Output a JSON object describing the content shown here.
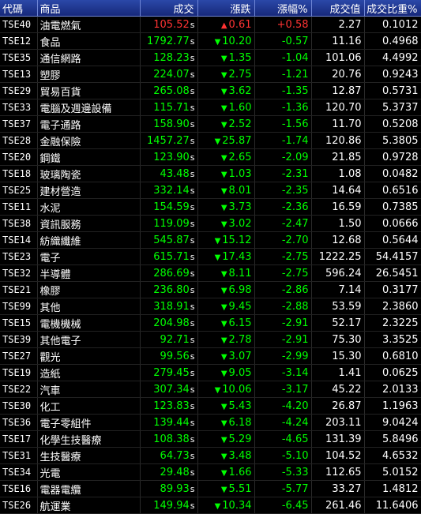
{
  "headers": {
    "code": "代碼",
    "name": "商品",
    "close": "成交",
    "change": "漲跌",
    "pct": "漲幅%",
    "value": "成交值",
    "ratio": "成交比重%"
  },
  "colors": {
    "up": "#ff3333",
    "down": "#00ff00",
    "header_bg": "#1e3a9a",
    "background": "#000000"
  },
  "icons": {
    "up": "triangle-up-icon",
    "down": "triangle-down-icon"
  },
  "rows": [
    {
      "code": "TSE40",
      "name": "油電燃氣",
      "close": "105.52",
      "flag": "s",
      "dir": "up",
      "arrow": "▲",
      "change": "0.61",
      "pct": "+0.58",
      "value": "2.27",
      "ratio": "0.1012"
    },
    {
      "code": "TSE12",
      "name": "食品",
      "close": "1792.77",
      "flag": "s",
      "dir": "down",
      "arrow": "▼",
      "change": "10.20",
      "pct": "-0.57",
      "value": "11.16",
      "ratio": "0.4968"
    },
    {
      "code": "TSE35",
      "name": "通信網路",
      "close": "128.23",
      "flag": "s",
      "dir": "down",
      "arrow": "▼",
      "change": "1.35",
      "pct": "-1.04",
      "value": "101.06",
      "ratio": "4.4992"
    },
    {
      "code": "TSE13",
      "name": "塑膠",
      "close": "224.07",
      "flag": "s",
      "dir": "down",
      "arrow": "▼",
      "change": "2.75",
      "pct": "-1.21",
      "value": "20.76",
      "ratio": "0.9243"
    },
    {
      "code": "TSE29",
      "name": "貿易百貨",
      "close": "265.08",
      "flag": "s",
      "dir": "down",
      "arrow": "▼",
      "change": "3.62",
      "pct": "-1.35",
      "value": "12.87",
      "ratio": "0.5731"
    },
    {
      "code": "TSE33",
      "name": "電腦及週邊設備",
      "close": "115.71",
      "flag": "s",
      "dir": "down",
      "arrow": "▼",
      "change": "1.60",
      "pct": "-1.36",
      "value": "120.70",
      "ratio": "5.3737"
    },
    {
      "code": "TSE37",
      "name": "電子通路",
      "close": "158.90",
      "flag": "s",
      "dir": "down",
      "arrow": "▼",
      "change": "2.52",
      "pct": "-1.56",
      "value": "11.70",
      "ratio": "0.5208"
    },
    {
      "code": "TSE28",
      "name": "金融保險",
      "close": "1457.27",
      "flag": "s",
      "dir": "down",
      "arrow": "▼",
      "change": "25.87",
      "pct": "-1.74",
      "value": "120.86",
      "ratio": "5.3805"
    },
    {
      "code": "TSE20",
      "name": "鋼鐵",
      "close": "123.90",
      "flag": "s",
      "dir": "down",
      "arrow": "▼",
      "change": "2.65",
      "pct": "-2.09",
      "value": "21.85",
      "ratio": "0.9728"
    },
    {
      "code": "TSE18",
      "name": "玻璃陶瓷",
      "close": "43.48",
      "flag": "s",
      "dir": "down",
      "arrow": "▼",
      "change": "1.03",
      "pct": "-2.31",
      "value": "1.08",
      "ratio": "0.0482"
    },
    {
      "code": "TSE25",
      "name": "建材營造",
      "close": "332.14",
      "flag": "s",
      "dir": "down",
      "arrow": "▼",
      "change": "8.01",
      "pct": "-2.35",
      "value": "14.64",
      "ratio": "0.6516"
    },
    {
      "code": "TSE11",
      "name": "水泥",
      "close": "154.59",
      "flag": "s",
      "dir": "down",
      "arrow": "▼",
      "change": "3.73",
      "pct": "-2.36",
      "value": "16.59",
      "ratio": "0.7385"
    },
    {
      "code": "TSE38",
      "name": "資訊服務",
      "close": "119.09",
      "flag": "s",
      "dir": "down",
      "arrow": "▼",
      "change": "3.02",
      "pct": "-2.47",
      "value": "1.50",
      "ratio": "0.0666"
    },
    {
      "code": "TSE14",
      "name": "紡織纖維",
      "close": "545.87",
      "flag": "s",
      "dir": "down",
      "arrow": "▼",
      "change": "15.12",
      "pct": "-2.70",
      "value": "12.68",
      "ratio": "0.5644"
    },
    {
      "code": "TSE23",
      "name": "電子",
      "close": "615.71",
      "flag": "s",
      "dir": "down",
      "arrow": "▼",
      "change": "17.43",
      "pct": "-2.75",
      "value": "1222.25",
      "ratio": "54.4157"
    },
    {
      "code": "TSE32",
      "name": "半導體",
      "close": "286.69",
      "flag": "s",
      "dir": "down",
      "arrow": "▼",
      "change": "8.11",
      "pct": "-2.75",
      "value": "596.24",
      "ratio": "26.5451"
    },
    {
      "code": "TSE21",
      "name": "橡膠",
      "close": "236.80",
      "flag": "s",
      "dir": "down",
      "arrow": "▼",
      "change": "6.98",
      "pct": "-2.86",
      "value": "7.14",
      "ratio": "0.3177"
    },
    {
      "code": "TSE99",
      "name": "其他",
      "close": "318.91",
      "flag": "s",
      "dir": "down",
      "arrow": "▼",
      "change": "9.45",
      "pct": "-2.88",
      "value": "53.59",
      "ratio": "2.3860"
    },
    {
      "code": "TSE15",
      "name": "電機機械",
      "close": "204.98",
      "flag": "s",
      "dir": "down",
      "arrow": "▼",
      "change": "6.15",
      "pct": "-2.91",
      "value": "52.17",
      "ratio": "2.3225"
    },
    {
      "code": "TSE39",
      "name": "其他電子",
      "close": "92.71",
      "flag": "s",
      "dir": "down",
      "arrow": "▼",
      "change": "2.78",
      "pct": "-2.91",
      "value": "75.30",
      "ratio": "3.3525"
    },
    {
      "code": "TSE27",
      "name": "觀光",
      "close": "99.56",
      "flag": "s",
      "dir": "down",
      "arrow": "▼",
      "change": "3.07",
      "pct": "-2.99",
      "value": "15.30",
      "ratio": "0.6810"
    },
    {
      "code": "TSE19",
      "name": "造紙",
      "close": "279.45",
      "flag": "s",
      "dir": "down",
      "arrow": "▼",
      "change": "9.05",
      "pct": "-3.14",
      "value": "1.41",
      "ratio": "0.0625"
    },
    {
      "code": "TSE22",
      "name": "汽車",
      "close": "307.34",
      "flag": "s",
      "dir": "down",
      "arrow": "▼",
      "change": "10.06",
      "pct": "-3.17",
      "value": "45.22",
      "ratio": "2.0133"
    },
    {
      "code": "TSE30",
      "name": "化工",
      "close": "123.83",
      "flag": "s",
      "dir": "down",
      "arrow": "▼",
      "change": "5.43",
      "pct": "-4.20",
      "value": "26.87",
      "ratio": "1.1963"
    },
    {
      "code": "TSE36",
      "name": "電子零組件",
      "close": "139.44",
      "flag": "s",
      "dir": "down",
      "arrow": "▼",
      "change": "6.18",
      "pct": "-4.24",
      "value": "203.11",
      "ratio": "9.0424"
    },
    {
      "code": "TSE17",
      "name": "化學生技醫療",
      "close": "108.38",
      "flag": "s",
      "dir": "down",
      "arrow": "▼",
      "change": "5.29",
      "pct": "-4.65",
      "value": "131.39",
      "ratio": "5.8496"
    },
    {
      "code": "TSE31",
      "name": "生技醫療",
      "close": "64.73",
      "flag": "s",
      "dir": "down",
      "arrow": "▼",
      "change": "3.48",
      "pct": "-5.10",
      "value": "104.52",
      "ratio": "4.6532"
    },
    {
      "code": "TSE34",
      "name": "光電",
      "close": "29.48",
      "flag": "s",
      "dir": "down",
      "arrow": "▼",
      "change": "1.66",
      "pct": "-5.33",
      "value": "112.65",
      "ratio": "5.0152"
    },
    {
      "code": "TSE16",
      "name": "電器電纜",
      "close": "89.93",
      "flag": "s",
      "dir": "down",
      "arrow": "▼",
      "change": "5.51",
      "pct": "-5.77",
      "value": "33.27",
      "ratio": "1.4812"
    },
    {
      "code": "TSE26",
      "name": "航運業",
      "close": "149.94",
      "flag": "s",
      "dir": "down",
      "arrow": "▼",
      "change": "10.34",
      "pct": "-6.45",
      "value": "261.46",
      "ratio": "11.6406"
    }
  ]
}
